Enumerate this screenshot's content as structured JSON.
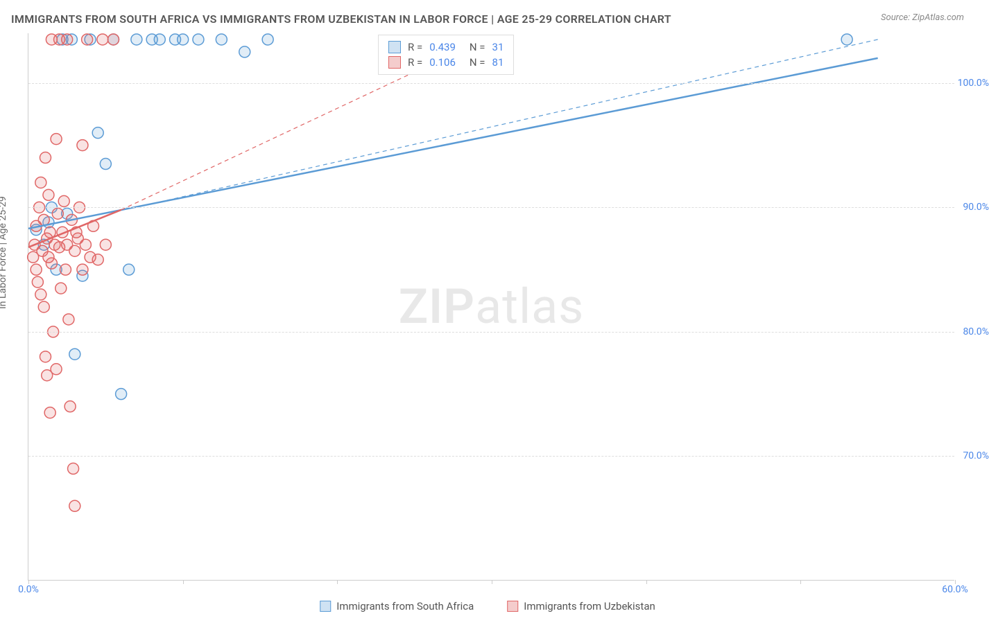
{
  "title": "IMMIGRANTS FROM SOUTH AFRICA VS IMMIGRANTS FROM UZBEKISTAN IN LABOR FORCE | AGE 25-29 CORRELATION CHART",
  "source": "Source: ZipAtlas.com",
  "watermark": {
    "left": "ZIP",
    "right": "atlas"
  },
  "y_axis_label": "In Labor Force | Age 25-29",
  "chart": {
    "type": "scatter",
    "xlim": [
      0,
      60
    ],
    "ylim": [
      60,
      104
    ],
    "x_ticks": [
      0,
      10,
      20,
      30,
      40,
      50,
      60
    ],
    "x_tick_labels": [
      "0.0%",
      "",
      "",
      "",
      "",
      "",
      "60.0%"
    ],
    "y_ticks": [
      70,
      80,
      90,
      100
    ],
    "y_tick_labels": [
      "70.0%",
      "80.0%",
      "90.0%",
      "100.0%"
    ],
    "grid_color": "#dddddd",
    "background_color": "#ffffff",
    "marker_radius": 8,
    "marker_stroke_width": 1.5,
    "marker_fill_opacity": 0.18,
    "series": [
      {
        "name": "Immigrants from South Africa",
        "color": "#5b9bd5",
        "fill": "#cfe2f3",
        "r_value": "0.439",
        "n_value": "31",
        "trend": {
          "x1": 0,
          "y1": 88.3,
          "x2": 55,
          "y2": 102,
          "dashed": false,
          "width": 2.5
        },
        "trend_ext": {
          "x1": 8,
          "y1": 90.3,
          "x2": 55,
          "y2": 103.5,
          "dashed": true,
          "width": 1.2
        },
        "points": [
          [
            0.5,
            88.2
          ],
          [
            1.0,
            87.0
          ],
          [
            1.3,
            88.8
          ],
          [
            1.5,
            90.0
          ],
          [
            1.8,
            85.0
          ],
          [
            2.2,
            103.5
          ],
          [
            2.5,
            89.5
          ],
          [
            2.8,
            103.5
          ],
          [
            3.0,
            78.2
          ],
          [
            3.5,
            84.5
          ],
          [
            4.0,
            103.5
          ],
          [
            4.5,
            96.0
          ],
          [
            5.0,
            93.5
          ],
          [
            5.5,
            103.5
          ],
          [
            6.0,
            75.0
          ],
          [
            6.5,
            85.0
          ],
          [
            7.0,
            103.5
          ],
          [
            8.0,
            103.5
          ],
          [
            8.5,
            103.5
          ],
          [
            9.5,
            103.5
          ],
          [
            10.0,
            103.5
          ],
          [
            11.0,
            103.5
          ],
          [
            12.5,
            103.5
          ],
          [
            14.0,
            102.5
          ],
          [
            15.5,
            103.5
          ],
          [
            53.0,
            103.5
          ]
        ]
      },
      {
        "name": "Immigrants from Uzbekistan",
        "color": "#e06666",
        "fill": "#f4cccc",
        "r_value": "0.106",
        "n_value": "81",
        "trend": {
          "x1": 0,
          "y1": 86.8,
          "x2": 6,
          "y2": 89.8,
          "dashed": false,
          "width": 2.5
        },
        "trend_ext": {
          "x1": 6,
          "y1": 89.8,
          "x2": 30,
          "y2": 103.8,
          "dashed": true,
          "width": 1.2
        },
        "points": [
          [
            0.3,
            86.0
          ],
          [
            0.4,
            87.0
          ],
          [
            0.5,
            85.0
          ],
          [
            0.5,
            88.5
          ],
          [
            0.6,
            84.0
          ],
          [
            0.7,
            90.0
          ],
          [
            0.8,
            83.0
          ],
          [
            0.8,
            92.0
          ],
          [
            0.9,
            86.5
          ],
          [
            1.0,
            82.0
          ],
          [
            1.0,
            89.0
          ],
          [
            1.1,
            78.0
          ],
          [
            1.1,
            94.0
          ],
          [
            1.2,
            76.5
          ],
          [
            1.2,
            87.5
          ],
          [
            1.3,
            86.0
          ],
          [
            1.3,
            91.0
          ],
          [
            1.4,
            73.5
          ],
          [
            1.4,
            88.0
          ],
          [
            1.5,
            85.5
          ],
          [
            1.5,
            103.5
          ],
          [
            1.6,
            80.0
          ],
          [
            1.7,
            87.0
          ],
          [
            1.8,
            95.5
          ],
          [
            1.8,
            77.0
          ],
          [
            1.9,
            89.5
          ],
          [
            2.0,
            86.8
          ],
          [
            2.0,
            103.5
          ],
          [
            2.1,
            83.5
          ],
          [
            2.2,
            88.0
          ],
          [
            2.3,
            90.5
          ],
          [
            2.4,
            85.0
          ],
          [
            2.5,
            87.0
          ],
          [
            2.5,
            103.5
          ],
          [
            2.6,
            81.0
          ],
          [
            2.7,
            74.0
          ],
          [
            2.8,
            89.0
          ],
          [
            2.9,
            69.0
          ],
          [
            3.0,
            86.5
          ],
          [
            3.0,
            66.0
          ],
          [
            3.1,
            88.0
          ],
          [
            3.2,
            87.5
          ],
          [
            3.3,
            90.0
          ],
          [
            3.5,
            85.0
          ],
          [
            3.5,
            95.0
          ],
          [
            3.7,
            87.0
          ],
          [
            3.8,
            103.5
          ],
          [
            4.0,
            86.0
          ],
          [
            4.2,
            88.5
          ],
          [
            4.5,
            85.8
          ],
          [
            4.8,
            103.5
          ],
          [
            5.0,
            87.0
          ],
          [
            5.5,
            103.5
          ]
        ]
      }
    ]
  },
  "stat_box": {
    "r_label": "R =",
    "n_label": "N ="
  },
  "legend_bottom": {
    "series1": "Immigrants from South Africa",
    "series2": "Immigrants from Uzbekistan"
  }
}
